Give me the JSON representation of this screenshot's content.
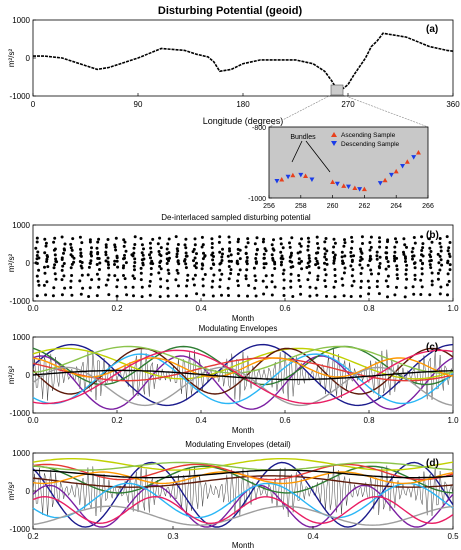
{
  "chart_data": [
    {
      "id": "a",
      "type": "line",
      "title": "Disturbing Potential (geoid)",
      "panel_label": "(a)",
      "xlabel": "Longitude (degrees)",
      "ylabel": "m²/s²",
      "xlim": [
        0,
        360
      ],
      "ylim": [
        -1000,
        1000
      ],
      "xticks": [
        0,
        90,
        180,
        270,
        360
      ],
      "yticks": [
        1000,
        0,
        -1000
      ],
      "series": [
        {
          "name": "",
          "x": [
            0,
            10,
            25,
            45,
            55,
            65,
            75,
            90,
            110,
            130,
            140,
            150,
            155,
            160,
            170,
            180,
            195,
            210,
            225,
            240,
            250,
            256,
            260,
            265,
            270,
            275,
            285,
            290,
            295,
            300,
            310,
            320,
            340,
            355,
            360
          ],
          "y": [
            50,
            50,
            0,
            -200,
            -300,
            -250,
            -150,
            0,
            250,
            200,
            100,
            30,
            -100,
            -350,
            -300,
            -150,
            -50,
            -50,
            -50,
            -150,
            -350,
            -600,
            -800,
            -820,
            -700,
            -450,
            0,
            300,
            450,
            650,
            600,
            550,
            300,
            200,
            180
          ]
        }
      ]
    },
    {
      "id": "a-inset",
      "type": "scatter",
      "xlim": [
        256,
        266
      ],
      "ylim": [
        -1000,
        -800
      ],
      "xticks": [
        256,
        258,
        260,
        262,
        264,
        266
      ],
      "yticks": [
        -800,
        -1000
      ],
      "annotation": "Bundles",
      "series": [
        {
          "name": "Ascending Sample",
          "color": "#e8401c",
          "marker": "triangle-up",
          "x": [
            256.8,
            257.5,
            258.3,
            260.0,
            260.7,
            261.4,
            262.0,
            263.3,
            264.0,
            264.7,
            265.4
          ],
          "y": [
            -948,
            -936,
            -938,
            -955,
            -966,
            -972,
            -975,
            -950,
            -925,
            -898,
            -872
          ]
        },
        {
          "name": "Descending Sample",
          "color": "#1a3ce8",
          "marker": "triangle-down",
          "x": [
            256.5,
            257.2,
            258.0,
            258.7,
            260.3,
            261.0,
            261.7,
            263.0,
            263.7,
            264.4,
            265.1
          ],
          "y": [
            -952,
            -940,
            -935,
            -948,
            -960,
            -968,
            -975,
            -958,
            -935,
            -910,
            -885
          ]
        }
      ]
    },
    {
      "id": "b",
      "type": "scatter",
      "title": "De-interlaced sampled disturbing potential",
      "panel_label": "(b)",
      "xlabel": "Month",
      "ylabel": "m²/s²",
      "xlim": [
        0,
        1
      ],
      "ylim": [
        -1000,
        1000
      ],
      "xticks": [
        0.0,
        0.2,
        0.4,
        0.6,
        0.8,
        1.0
      ],
      "yticks": [
        1000,
        0,
        -1000
      ],
      "levels": [
        650,
        520,
        400,
        300,
        220,
        150,
        80,
        20,
        -50,
        -150,
        -300,
        -450,
        -620,
        -850
      ],
      "points_per_level": 48
    },
    {
      "id": "c",
      "type": "line",
      "title": "Modulating Envelopes",
      "panel_label": "(c)",
      "xlabel": "Month",
      "ylabel": "m²/s²",
      "xlim": [
        0,
        1
      ],
      "ylim": [
        -1000,
        1000
      ],
      "xticks": [
        0.0,
        0.2,
        0.4,
        0.6,
        0.8,
        1.0
      ],
      "yticks": [
        1000,
        0,
        -1000
      ],
      "envelopes": [
        {
          "color": "#1a1a8c",
          "base": 0,
          "amp": 800,
          "freq": 2.2,
          "phase": 0.3
        },
        {
          "color": "#7b1fa2",
          "base": -200,
          "amp": 700,
          "freq": 3.0,
          "phase": 1.2
        },
        {
          "color": "#2e7d32",
          "base": 250,
          "amp": 500,
          "freq": 2.6,
          "phase": 2.0
        },
        {
          "color": "#c0d000",
          "base": 300,
          "amp": 400,
          "freq": 1.8,
          "phase": 0.7
        },
        {
          "color": "#5d1a0a",
          "base": 100,
          "amp": 600,
          "freq": 2.9,
          "phase": 3.1
        },
        {
          "color": "#29b6f6",
          "base": -100,
          "amp": 650,
          "freq": 2.4,
          "phase": 4.0
        },
        {
          "color": "#e53935",
          "base": 150,
          "amp": 300,
          "freq": 1.5,
          "phase": 2.6
        },
        {
          "color": "#8bc34a",
          "base": 400,
          "amp": 350,
          "freq": 2.0,
          "phase": 5.0
        },
        {
          "color": "#ff9800",
          "base": 200,
          "amp": 250,
          "freq": 3.4,
          "phase": 1.8
        },
        {
          "color": "#9e9e9e",
          "base": -300,
          "amp": 500,
          "freq": 2.7,
          "phase": 0.2
        },
        {
          "color": "#e91e63",
          "base": -50,
          "amp": 700,
          "freq": 1.6,
          "phase": 4.4
        },
        {
          "color": "#000000",
          "base": 0,
          "amp": 120,
          "freq": 1.2,
          "phase": 0.0
        }
      ]
    },
    {
      "id": "d",
      "type": "line",
      "title": "Modulating Envelopes (detail)",
      "panel_label": "(d)",
      "xlabel": "Month",
      "ylabel": "m²/s²",
      "xlim": [
        0.2,
        0.5
      ],
      "ylim": [
        -1000,
        1000
      ],
      "xticks": [
        0.2,
        0.3,
        0.4,
        0.5
      ],
      "yticks": [
        1000,
        0,
        -1000
      ],
      "envelopes": [
        {
          "color": "#1a1a8c",
          "base": -100,
          "amp": 850,
          "freq": 3.2,
          "phase": 2.2
        },
        {
          "color": "#7b1fa2",
          "base": -400,
          "amp": 550,
          "freq": 4.0,
          "phase": 0.6
        },
        {
          "color": "#2e7d32",
          "base": 300,
          "amp": 350,
          "freq": 2.5,
          "phase": 1.5
        },
        {
          "color": "#c0d000",
          "base": 700,
          "amp": 150,
          "freq": 2.0,
          "phase": 0.4
        },
        {
          "color": "#5d1a0a",
          "base": 250,
          "amp": 150,
          "freq": 1.5,
          "phase": 2.5
        },
        {
          "color": "#29b6f6",
          "base": -250,
          "amp": 450,
          "freq": 3.0,
          "phase": 3.6
        },
        {
          "color": "#e53935",
          "base": 500,
          "amp": 200,
          "freq": 2.8,
          "phase": 1.0
        },
        {
          "color": "#8bc34a",
          "base": 650,
          "amp": 100,
          "freq": 2.2,
          "phase": 3.0
        },
        {
          "color": "#ff9800",
          "base": 350,
          "amp": 150,
          "freq": 3.5,
          "phase": 4.2
        },
        {
          "color": "#9e9e9e",
          "base": -650,
          "amp": 250,
          "freq": 2.4,
          "phase": 5.1
        },
        {
          "color": "#e91e63",
          "base": -500,
          "amp": 350,
          "freq": 3.8,
          "phase": 0.9
        },
        {
          "color": "#000000",
          "base": 450,
          "amp": 100,
          "freq": 1.6,
          "phase": 1.9
        }
      ]
    }
  ]
}
